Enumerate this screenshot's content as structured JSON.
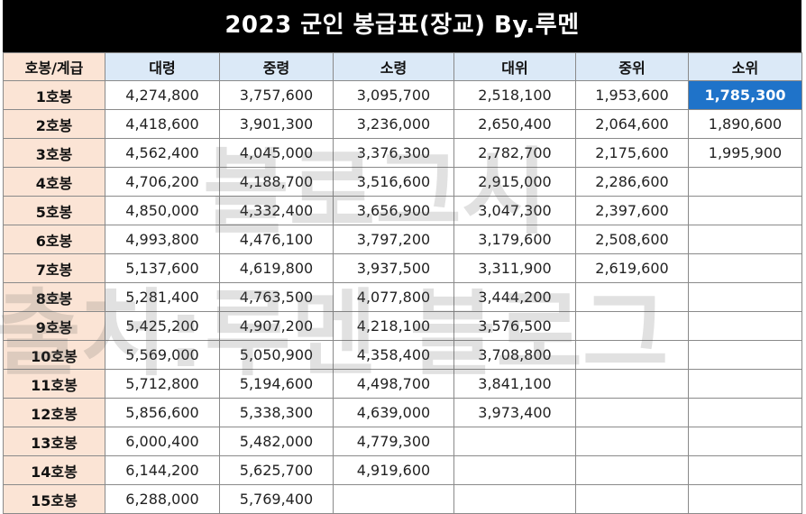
{
  "title": "2023 군인 봉급표(장교) By.루멘",
  "watermark": {
    "line1": "블로그시",
    "line2": "출처:루멘 블로그"
  },
  "headers": [
    "호봉/계급",
    "대령",
    "중령",
    "소령",
    "대위",
    "중위",
    "소위"
  ],
  "rows": [
    {
      "grade": "1호봉",
      "values": [
        "4,274,800",
        "3,757,600",
        "3,095,700",
        "2,518,100",
        "1,953,600",
        "1,785,300"
      ]
    },
    {
      "grade": "2호봉",
      "values": [
        "4,418,600",
        "3,901,300",
        "3,236,000",
        "2,650,400",
        "2,064,600",
        "1,890,600"
      ]
    },
    {
      "grade": "3호봉",
      "values": [
        "4,562,400",
        "4,045,000",
        "3,376,300",
        "2,782,700",
        "2,175,600",
        "1,995,900"
      ]
    },
    {
      "grade": "4호봉",
      "values": [
        "4,706,200",
        "4,188,700",
        "3,516,600",
        "2,915,000",
        "2,286,600",
        ""
      ]
    },
    {
      "grade": "5호봉",
      "values": [
        "4,850,000",
        "4,332,400",
        "3,656,900",
        "3,047,300",
        "2,397,600",
        ""
      ]
    },
    {
      "grade": "6호봉",
      "values": [
        "4,993,800",
        "4,476,100",
        "3,797,200",
        "3,179,600",
        "2,508,600",
        ""
      ]
    },
    {
      "grade": "7호봉",
      "values": [
        "5,137,600",
        "4,619,800",
        "3,937,500",
        "3,311,900",
        "2,619,600",
        ""
      ]
    },
    {
      "grade": "8호봉",
      "values": [
        "5,281,400",
        "4,763,500",
        "4,077,800",
        "3,444,200",
        "",
        ""
      ]
    },
    {
      "grade": "9호봉",
      "values": [
        "5,425,200",
        "4,907,200",
        "4,218,100",
        "3,576,500",
        "",
        ""
      ]
    },
    {
      "grade": "10호봉",
      "values": [
        "5,569,000",
        "5,050,900",
        "4,358,400",
        "3,708,800",
        "",
        ""
      ]
    },
    {
      "grade": "11호봉",
      "values": [
        "5,712,800",
        "5,194,600",
        "4,498,700",
        "3,841,100",
        "",
        ""
      ]
    },
    {
      "grade": "12호봉",
      "values": [
        "5,856,600",
        "5,338,300",
        "4,639,000",
        "3,973,400",
        "",
        ""
      ]
    },
    {
      "grade": "13호봉",
      "values": [
        "6,000,400",
        "5,482,000",
        "4,779,300",
        "",
        "",
        ""
      ]
    },
    {
      "grade": "14호봉",
      "values": [
        "6,144,200",
        "5,625,700",
        "4,919,600",
        "",
        "",
        ""
      ]
    },
    {
      "grade": "15호봉",
      "values": [
        "6,288,000",
        "5,769,400",
        "",
        "",
        "",
        ""
      ]
    }
  ],
  "highlight": {
    "row": 0,
    "col": 5,
    "color": "#1f73c9"
  }
}
